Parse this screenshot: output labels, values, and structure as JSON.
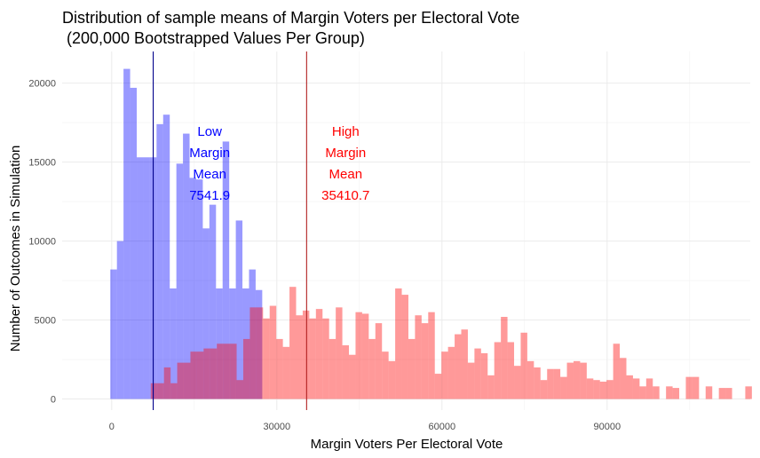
{
  "chart_data": {
    "type": "histogram",
    "title_line1": "Distribution of sample means of Margin Voters per Electoral Vote",
    "title_line2": " (200,000 Bootstrapped Values Per Group)",
    "xlabel": "Margin Voters Per Electoral Vote",
    "ylabel": "Number of Outcomes in Simulation",
    "xlim": [
      -9000,
      116000
    ],
    "ylim": [
      -700,
      22000
    ],
    "x_ticks": [
      0,
      30000,
      60000,
      90000
    ],
    "x_tick_labels": [
      "0",
      "30000",
      "60000",
      "90000"
    ],
    "y_ticks": [
      0,
      5000,
      10000,
      15000,
      20000
    ],
    "y_tick_labels": [
      "0",
      "5000",
      "10000",
      "15000",
      "20000"
    ],
    "bin_width": 1200,
    "grid": true,
    "series": [
      {
        "name": "Low Margin",
        "color": "#0000ff",
        "opacity": 0.4,
        "start": -250,
        "values": [
          8200,
          10000,
          20900,
          19700,
          15300,
          15300,
          15300,
          17400,
          18000,
          7000,
          14900,
          16800,
          14000,
          13900,
          10800,
          12300,
          7000,
          16300,
          7000,
          11300,
          7000,
          8200,
          6900,
          0,
          0,
          0,
          0,
          0
        ]
      },
      {
        "name": "High Margin",
        "color": "#ff0000",
        "opacity": 0.4,
        "start": 7100,
        "values": [
          1000,
          1000,
          2000,
          1000,
          2300,
          2300,
          3000,
          3000,
          3200,
          3200,
          3500,
          3500,
          3500,
          1200,
          3800,
          5800,
          5800,
          5100,
          5900,
          3800,
          3300,
          7100,
          5300,
          5600,
          5100,
          5700,
          5100,
          3800,
          5800,
          3400,
          2800,
          5500,
          5400,
          3800,
          4800,
          3000,
          2400,
          7000,
          6600,
          3800,
          5300,
          4800,
          5500,
          1600,
          3000,
          3300,
          4100,
          4400,
          2300,
          3200,
          2900,
          1500,
          3600,
          5200,
          3600,
          2100,
          4200,
          2400,
          2000,
          1200,
          1900,
          1900,
          1400,
          2300,
          2400,
          2300,
          1300,
          1200,
          1100,
          1200,
          3500,
          2600,
          1500,
          1300,
          800,
          1300,
          800,
          0,
          800,
          700,
          0,
          1400,
          1400,
          0,
          800,
          0,
          700,
          700,
          0,
          0,
          800,
          0,
          0,
          0,
          0,
          0,
          0,
          0,
          0,
          0,
          0,
          0,
          0,
          0,
          0,
          0,
          0,
          0,
          0,
          0,
          0,
          0,
          0,
          0,
          0,
          0,
          0,
          0,
          0,
          0,
          0,
          0,
          0,
          0,
          0,
          0,
          0,
          0,
          0,
          0,
          0,
          0,
          0,
          0,
          0,
          0,
          0,
          0,
          0,
          0,
          0,
          0,
          0,
          0,
          0,
          0,
          0
        ]
      }
    ],
    "mean_lines": [
      {
        "name": "Low Margin",
        "value": 7541.9,
        "color": "#00008b"
      },
      {
        "name": "High Margin",
        "value": 35410.7,
        "color": "#b22222"
      }
    ],
    "annotations": [
      {
        "lines": [
          "Low",
          "Margin",
          "Mean",
          "7541.9"
        ],
        "color": "#0000ff",
        "x": 17800
      },
      {
        "lines": [
          "High",
          "Margin",
          "Mean",
          "35410.7"
        ],
        "color": "#ff0000",
        "x": 42500
      }
    ]
  }
}
